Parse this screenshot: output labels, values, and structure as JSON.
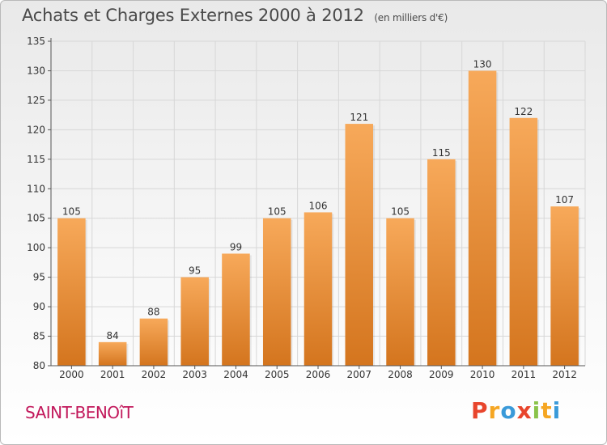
{
  "header": {
    "title": "Achats et Charges Externes 2000 à 2012",
    "subtitle": "(en milliers d'€)"
  },
  "footer": {
    "commune": "SAINT-BENOîT",
    "logo_letters": [
      "P",
      "r",
      "o",
      "x",
      "i",
      "t",
      "i"
    ],
    "logo_colors": [
      "#e8452c",
      "#f5a623",
      "#3a9ad9",
      "#e8452c",
      "#8bc34a",
      "#f5a623",
      "#3a9ad9"
    ]
  },
  "colors": {
    "bar_top": "#f7a95a",
    "bar_bottom": "#d4751e",
    "grid": "#d7d7d7",
    "axis_text": "#333333"
  },
  "chart_data": {
    "type": "bar",
    "title": "Achats et Charges Externes 2000 à 2012",
    "subtitle": "(en milliers d'€)",
    "categories": [
      "2000",
      "2001",
      "2002",
      "2003",
      "2004",
      "2005",
      "2006",
      "2007",
      "2008",
      "2009",
      "2010",
      "2011",
      "2012"
    ],
    "values": [
      105,
      84,
      88,
      95,
      99,
      105,
      106,
      121,
      105,
      115,
      130,
      122,
      107
    ],
    "ylim": [
      80,
      135
    ],
    "yticks": [
      80,
      85,
      90,
      95,
      100,
      105,
      110,
      115,
      120,
      125,
      130,
      135
    ],
    "grid": true
  }
}
